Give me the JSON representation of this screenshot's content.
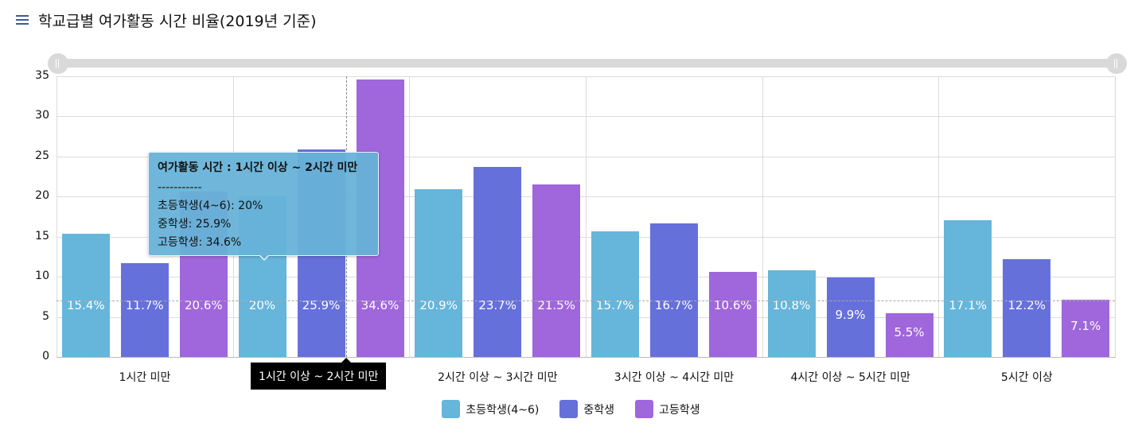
{
  "header": {
    "title": "학교급별 여가활동 시간 비율(2019년 기준)",
    "menu_icon": "hamburger-menu-icon"
  },
  "slider": {
    "start_handle": "range-start-handle",
    "end_handle": "range-end-handle"
  },
  "yaxis": {
    "ticks": [
      "35",
      "30",
      "25",
      "20",
      "15",
      "10",
      "5",
      "0"
    ]
  },
  "xaxis": {
    "categories": [
      "1시간 미만",
      "1시간 이상 ~ 2시간 미만",
      "2시간 이상 ~ 3시간 미만",
      "3시간 이상 ~ 4시간 미만",
      "4시간 이상 ~ 5시간 미만",
      "5시간 이상"
    ]
  },
  "tooltip": {
    "title": "여가활동 시간 : 1시간 이상 ~ 2시간 미만",
    "separator": "-----------",
    "lines": [
      "초등학생(4~6): 20%",
      "중학생: 25.9%",
      "고등학생: 34.6%"
    ]
  },
  "legend": {
    "items": [
      {
        "label": "초등학생(4~6)",
        "color": "#66b5db"
      },
      {
        "label": "중학생",
        "color": "#6670db"
      },
      {
        "label": "고등학생",
        "color": "#a066db"
      }
    ]
  },
  "bar_labels": [
    [
      "15.4%",
      "11.7%",
      "20.6%"
    ],
    [
      "20%",
      "25.9%",
      "34.6%"
    ],
    [
      "20.9%",
      "23.7%",
      "21.5%"
    ],
    [
      "15.7%",
      "16.7%",
      "10.6%"
    ],
    [
      "10.8%",
      "9.9%",
      "5.5%"
    ],
    [
      "17.1%",
      "12.2%",
      "7.1%"
    ]
  ],
  "chart_data": {
    "type": "bar",
    "title": "학교급별 여가활동 시간 비율(2019년 기준)",
    "xlabel": "",
    "ylabel": "",
    "ylim": [
      0,
      35
    ],
    "yticks": [
      0,
      5,
      10,
      15,
      20,
      25,
      30,
      35
    ],
    "grid": true,
    "legend_position": "bottom",
    "categories": [
      "1시간 미만",
      "1시간 이상 ~ 2시간 미만",
      "2시간 이상 ~ 3시간 미만",
      "3시간 이상 ~ 4시간 미만",
      "4시간 이상 ~ 5시간 미만",
      "5시간 이상"
    ],
    "series": [
      {
        "name": "초등학생(4~6)",
        "color": "#66b5db",
        "values": [
          15.4,
          20,
          20.9,
          15.7,
          10.8,
          17.1
        ]
      },
      {
        "name": "중학생",
        "color": "#6670db",
        "values": [
          11.7,
          25.9,
          23.7,
          16.7,
          9.9,
          12.2
        ]
      },
      {
        "name": "고등학생",
        "color": "#a066db",
        "values": [
          20.6,
          34.6,
          21.5,
          10.6,
          5.5,
          7.1
        ]
      }
    ],
    "reference_line": 7,
    "data_label_suffix": "%",
    "highlighted_category": "1시간 이상 ~ 2시간 미만"
  }
}
